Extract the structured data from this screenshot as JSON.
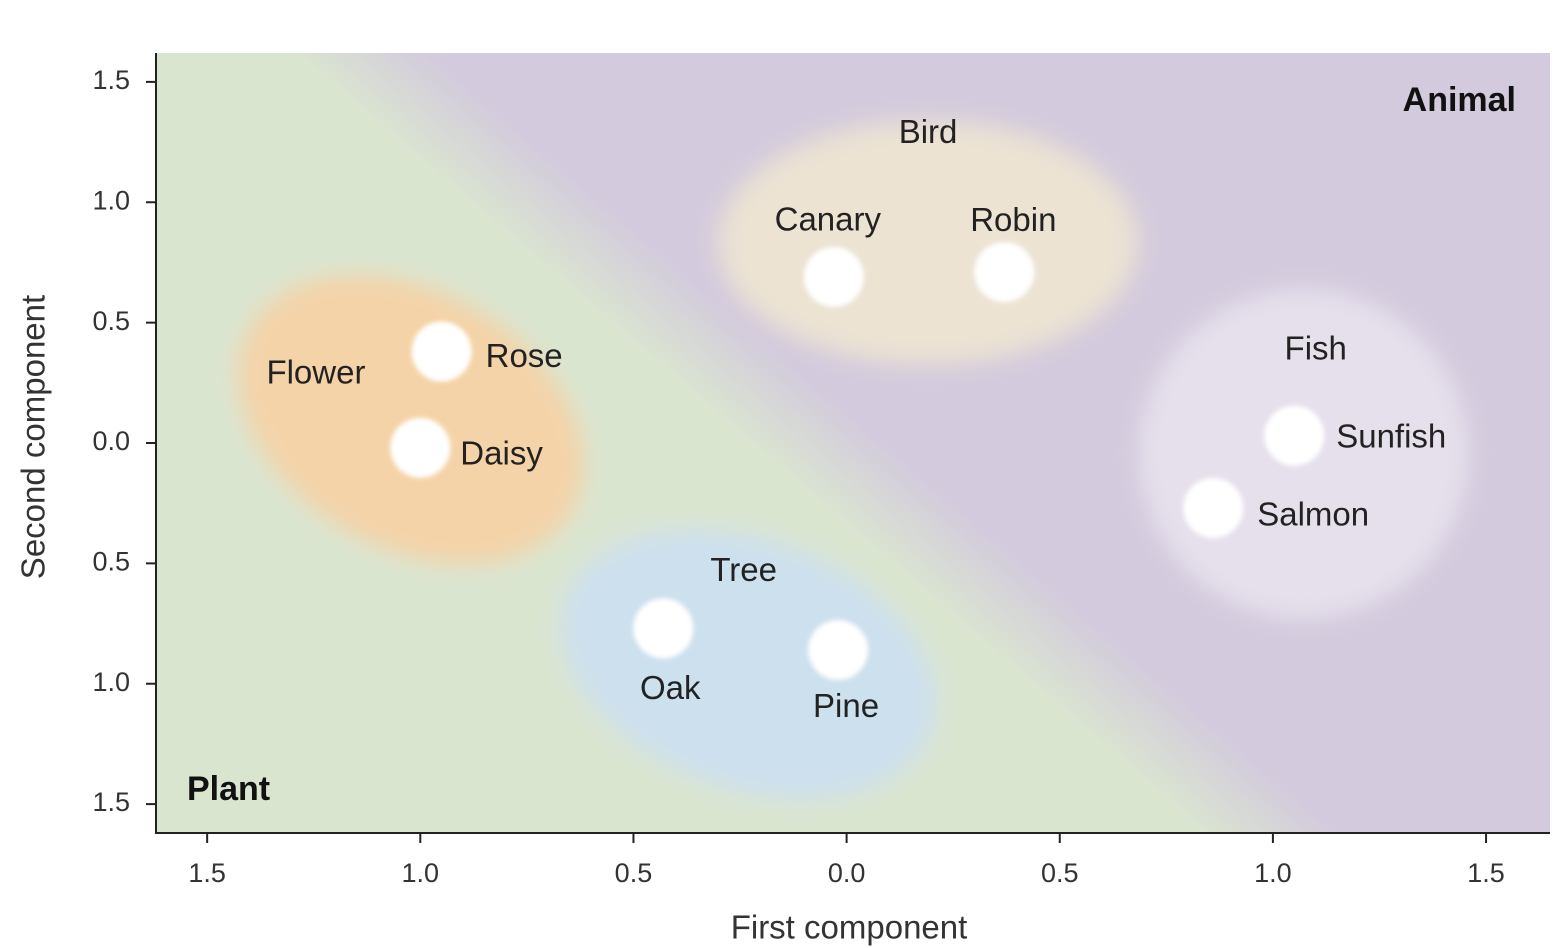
{
  "chart_data": {
    "type": "scatter",
    "x_label": "First component",
    "y_label": "Second component",
    "xlim": [
      -1.62,
      1.65
    ],
    "ylim": [
      -1.62,
      1.62
    ],
    "xticks": [
      {
        "value": -1.5,
        "label": "1.5"
      },
      {
        "value": -1,
        "label": "1.0"
      },
      {
        "value": -0.5,
        "label": "0.5"
      },
      {
        "value": 0,
        "label": "0.0"
      },
      0.5,
      {
        "value": 1,
        "label": "1.0"
      },
      1.5
    ],
    "yticks": [
      {
        "value": -1.5,
        "label": "1.5"
      },
      {
        "value": -1,
        "label": "1.0"
      },
      {
        "value": -0.5,
        "label": "0.5"
      },
      {
        "value": 0,
        "label": "0.0"
      },
      0.5,
      {
        "value": 1,
        "label": "1.0"
      },
      1.5
    ],
    "point_color": "#ffffff",
    "regions": [
      {
        "name": "Plant",
        "color": "#dae5d0"
      },
      {
        "name": "Animal",
        "color": "#d3cadd"
      }
    ],
    "series": [
      {
        "name": "Flower",
        "color": "#f5d3a8",
        "labels": [
          "Rose",
          "Daisy"
        ],
        "x": [
          -0.95,
          -1.0
        ],
        "y": [
          0.38,
          -0.02
        ]
      },
      {
        "name": "Bird",
        "color": "#ece3d3",
        "labels": [
          "Canary",
          "Robin"
        ],
        "x": [
          -0.03,
          0.37
        ],
        "y": [
          0.69,
          0.71
        ]
      },
      {
        "name": "Tree",
        "color": "#cde0ee",
        "labels": [
          "Oak",
          "Pine"
        ],
        "x": [
          -0.43,
          -0.02
        ],
        "y": [
          -0.77,
          -0.86
        ]
      },
      {
        "name": "Fish",
        "color": "#e6e0ec",
        "labels": [
          "Sunfish",
          "Salmon"
        ],
        "x": [
          1.05,
          0.86
        ],
        "y": [
          0.03,
          -0.27
        ]
      }
    ]
  }
}
